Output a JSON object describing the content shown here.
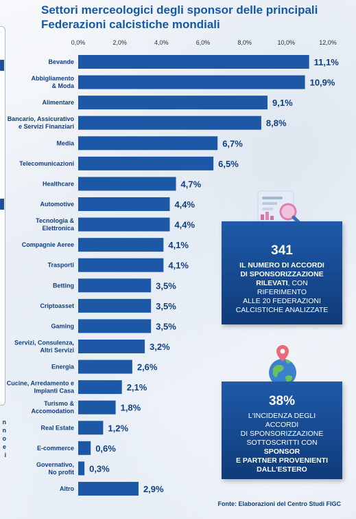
{
  "title_line1": "Settori merceologici degli sponsor delle principali",
  "title_line2": "Federazioni calcistiche mondiali",
  "chart_data": {
    "type": "bar",
    "orientation": "horizontal",
    "x_ticks": [
      "0,0%",
      "2,0%",
      "4,0%",
      "6,0%",
      "8,0%",
      "10,0%",
      "12,0%"
    ],
    "xlim": [
      0,
      12
    ],
    "grid": false,
    "categories": [
      [
        "Bevande"
      ],
      [
        "Abbigliamento",
        "& Moda"
      ],
      [
        "Alimentare"
      ],
      [
        "Bancario, Assicurativo",
        "e Servizi Finanziari"
      ],
      [
        "Media"
      ],
      [
        "Telecomunicazioni"
      ],
      [
        "Healthcare"
      ],
      [
        "Automotive"
      ],
      [
        "Tecnologia &",
        "Elettronica"
      ],
      [
        "Compagnie Aeree"
      ],
      [
        "Trasporti"
      ],
      [
        "Betting"
      ],
      [
        "Criptoasset"
      ],
      [
        "Gaming"
      ],
      [
        "Servizi, Consulenza,",
        "Altri Servizi"
      ],
      [
        "Energia"
      ],
      [
        "Cucine, Arredamento e",
        "Impianti Casa"
      ],
      [
        "Turismo &",
        "Accomodation"
      ],
      [
        "Real Estate"
      ],
      [
        "E-commerce"
      ],
      [
        "Governativo,",
        "No profit"
      ],
      [
        "Altro"
      ]
    ],
    "values": [
      11.1,
      10.9,
      9.1,
      8.8,
      6.7,
      6.5,
      4.7,
      4.4,
      4.4,
      4.1,
      4.1,
      3.5,
      3.5,
      3.5,
      3.2,
      2.6,
      2.1,
      1.8,
      1.2,
      0.6,
      0.3,
      2.9
    ],
    "value_labels": [
      "11,1%",
      "10,9%",
      "9,1%",
      "8,8%",
      "6,7%",
      "6,5%",
      "4,7%",
      "4,4%",
      "4,4%",
      "4,1%",
      "4,1%",
      "3,5%",
      "3,5%",
      "3,5%",
      "3,2%",
      "2,6%",
      "2,1%",
      "1,8%",
      "1,2%",
      "0,6%",
      "0,3%",
      "2,9%"
    ],
    "bar_color": "#1d58a7"
  },
  "box1": {
    "number": "341",
    "line1": "IL NUMERO DI ACCORDI",
    "line2": "DI SPONSORIZZAZIONE",
    "line3_bold": "RILEVATI",
    "line3_rest": ", CON RIFERIMENTO",
    "line4": "ALLE 20 FEDERAZIONI",
    "line5": "CALCISTICHE ANALIZZATE"
  },
  "box2": {
    "number": "38%",
    "line1": "L'INCIDENZA DEGLI ACCORDI",
    "line2": "DI SPONSORIZZAZIONE",
    "line3_rest": "SOTTOSCRITTI CON ",
    "line3_bold": "SPONSOR",
    "line4": "E PARTNER PROVENIENTI",
    "line5": "DALL'ESTERO"
  },
  "edge_fragments": [
    "n",
    "n",
    "o",
    "e",
    "i"
  ],
  "source": "Fonte: Elaborazioni del Centro Studi FIGC",
  "icons": [
    "chart-magnifier-icon",
    "globe-pin-icon"
  ]
}
